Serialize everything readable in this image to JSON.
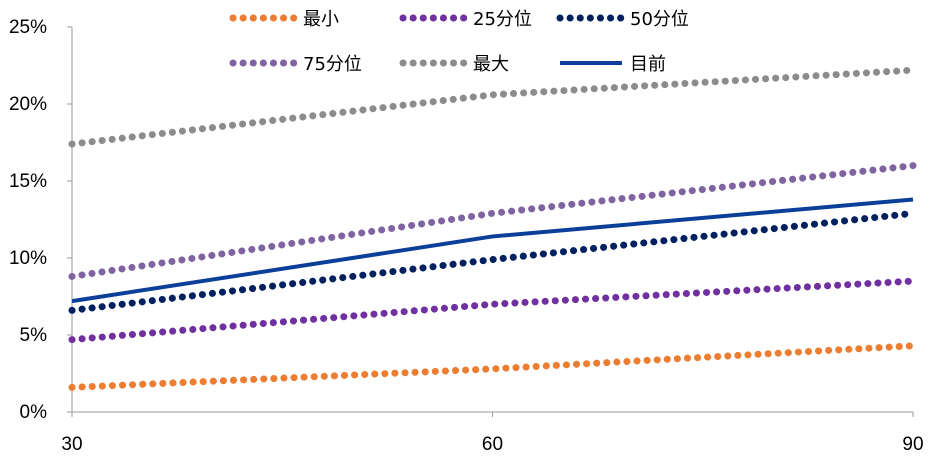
{
  "chart_data": {
    "type": "line",
    "x": [
      30,
      60,
      90
    ],
    "x_ticks": [
      "30",
      "60",
      "90"
    ],
    "y_ticks": [
      "0%",
      "5%",
      "10%",
      "15%",
      "20%",
      "25%"
    ],
    "ylim": [
      0,
      25
    ],
    "grid": false,
    "legend_position": "top",
    "series": [
      {
        "name": "最小",
        "values": [
          1.6,
          2.8,
          4.3
        ],
        "color": "#ED7D31",
        "style": "dotted"
      },
      {
        "name": "25分位",
        "values": [
          4.7,
          7.0,
          8.5
        ],
        "color": "#7030A0",
        "style": "dotted"
      },
      {
        "name": "50分位",
        "values": [
          6.6,
          9.9,
          12.9
        ],
        "color": "#002060",
        "style": "dotted"
      },
      {
        "name": "75分位",
        "values": [
          8.8,
          12.9,
          16.0
        ],
        "color": "#8064A2",
        "style": "dotted"
      },
      {
        "name": "最大",
        "values": [
          17.4,
          20.6,
          22.2
        ],
        "color": "#8C8C8C",
        "style": "dotted"
      },
      {
        "name": "目前",
        "values": [
          7.2,
          11.4,
          13.8
        ],
        "color": "#0B3F9A",
        "style": "solid"
      }
    ]
  }
}
